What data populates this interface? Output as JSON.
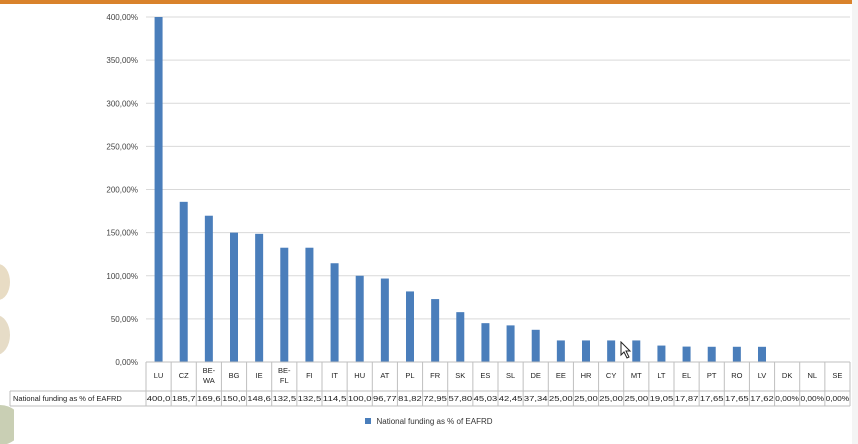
{
  "chart_data": {
    "type": "bar",
    "ylim": [
      0,
      400
    ],
    "yticks": [
      "0,00%",
      "50,00%",
      "100,00%",
      "150,00%",
      "200,00%",
      "250,00%",
      "300,00%",
      "350,00%",
      "400,00%"
    ],
    "categories": [
      "LU",
      "CZ",
      "BE-WA",
      "BG",
      "IE",
      "BE-FL",
      "FI",
      "IT",
      "HU",
      "AT",
      "PL",
      "FR",
      "SK",
      "ES",
      "SL",
      "DE",
      "EE",
      "HR",
      "CY",
      "MT",
      "LT",
      "EL",
      "PT",
      "RO",
      "LV",
      "DK",
      "NL",
      "SE"
    ],
    "values": [
      400.0,
      185.7,
      169.6,
      150.0,
      148.6,
      132.5,
      132.5,
      114.5,
      100.0,
      96.77,
      81.82,
      72.95,
      57.8,
      45.03,
      42.45,
      37.34,
      25.0,
      25.0,
      25.0,
      25.0,
      19.05,
      17.87,
      17.65,
      17.65,
      17.62,
      0.0,
      0.0,
      0.0
    ],
    "table_values": [
      "400,0",
      "185,7",
      "169,6",
      "150,0",
      "148,6",
      "132,5",
      "132,5",
      "114,5",
      "100,0",
      "96,77",
      "81,82",
      "72,95",
      "57,80",
      "45,03",
      "42,45",
      "37,34",
      "25,00",
      "25,00",
      "25,00",
      "25,00",
      "19,05",
      "17,87",
      "17,65",
      "17,65",
      "17,62",
      "0,00%",
      "0,00%",
      "0,00%"
    ],
    "series": [
      {
        "name": "National funding as % of EAFRD"
      }
    ],
    "table_row_label": "National funding as % of EAFRD",
    "legend": "bottom",
    "grid": true,
    "bar_color": "#4a7ebb"
  }
}
